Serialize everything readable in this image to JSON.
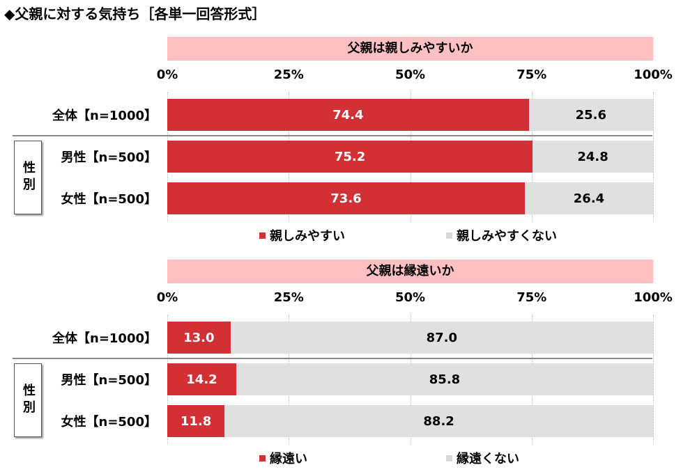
{
  "title": "◆父親に対する気持ち［各単一回答形式］",
  "colors": {
    "positive": "#d33035",
    "negative": "#e0e0e0",
    "header_bg": "#ffc0c3"
  },
  "chart_data": [
    {
      "type": "bar",
      "orientation": "horizontal",
      "stacked": true,
      "title": "父親は親しみやすいか",
      "xlim": [
        0,
        100
      ],
      "ticks": [
        "0%",
        "25%",
        "50%",
        "75%",
        "100%"
      ],
      "grid": true,
      "group_label": "性別",
      "categories": [
        "全体【n=1000】",
        "男性【n=500】",
        "女性【n=500】"
      ],
      "series": [
        {
          "name": "親しみやすい",
          "values": [
            74.4,
            75.2,
            73.6
          ],
          "labels": [
            "74.4",
            "75.2",
            "73.6"
          ]
        },
        {
          "name": "親しみやすくない",
          "values": [
            25.6,
            24.8,
            26.4
          ],
          "labels": [
            "25.6",
            "24.8",
            "26.4"
          ]
        }
      ],
      "legend_position": "bottom"
    },
    {
      "type": "bar",
      "orientation": "horizontal",
      "stacked": true,
      "title": "父親は縁遠いか",
      "xlim": [
        0,
        100
      ],
      "ticks": [
        "0%",
        "25%",
        "50%",
        "75%",
        "100%"
      ],
      "grid": true,
      "group_label": "性別",
      "categories": [
        "全体【n=1000】",
        "男性【n=500】",
        "女性【n=500】"
      ],
      "series": [
        {
          "name": "縁遠い",
          "values": [
            13.0,
            14.2,
            11.8
          ],
          "labels": [
            "13.0",
            "14.2",
            "11.8"
          ]
        },
        {
          "name": "縁遠くない",
          "values": [
            87.0,
            85.8,
            88.2
          ],
          "labels": [
            "87.0",
            "85.8",
            "88.2"
          ]
        }
      ],
      "legend_position": "bottom"
    }
  ]
}
